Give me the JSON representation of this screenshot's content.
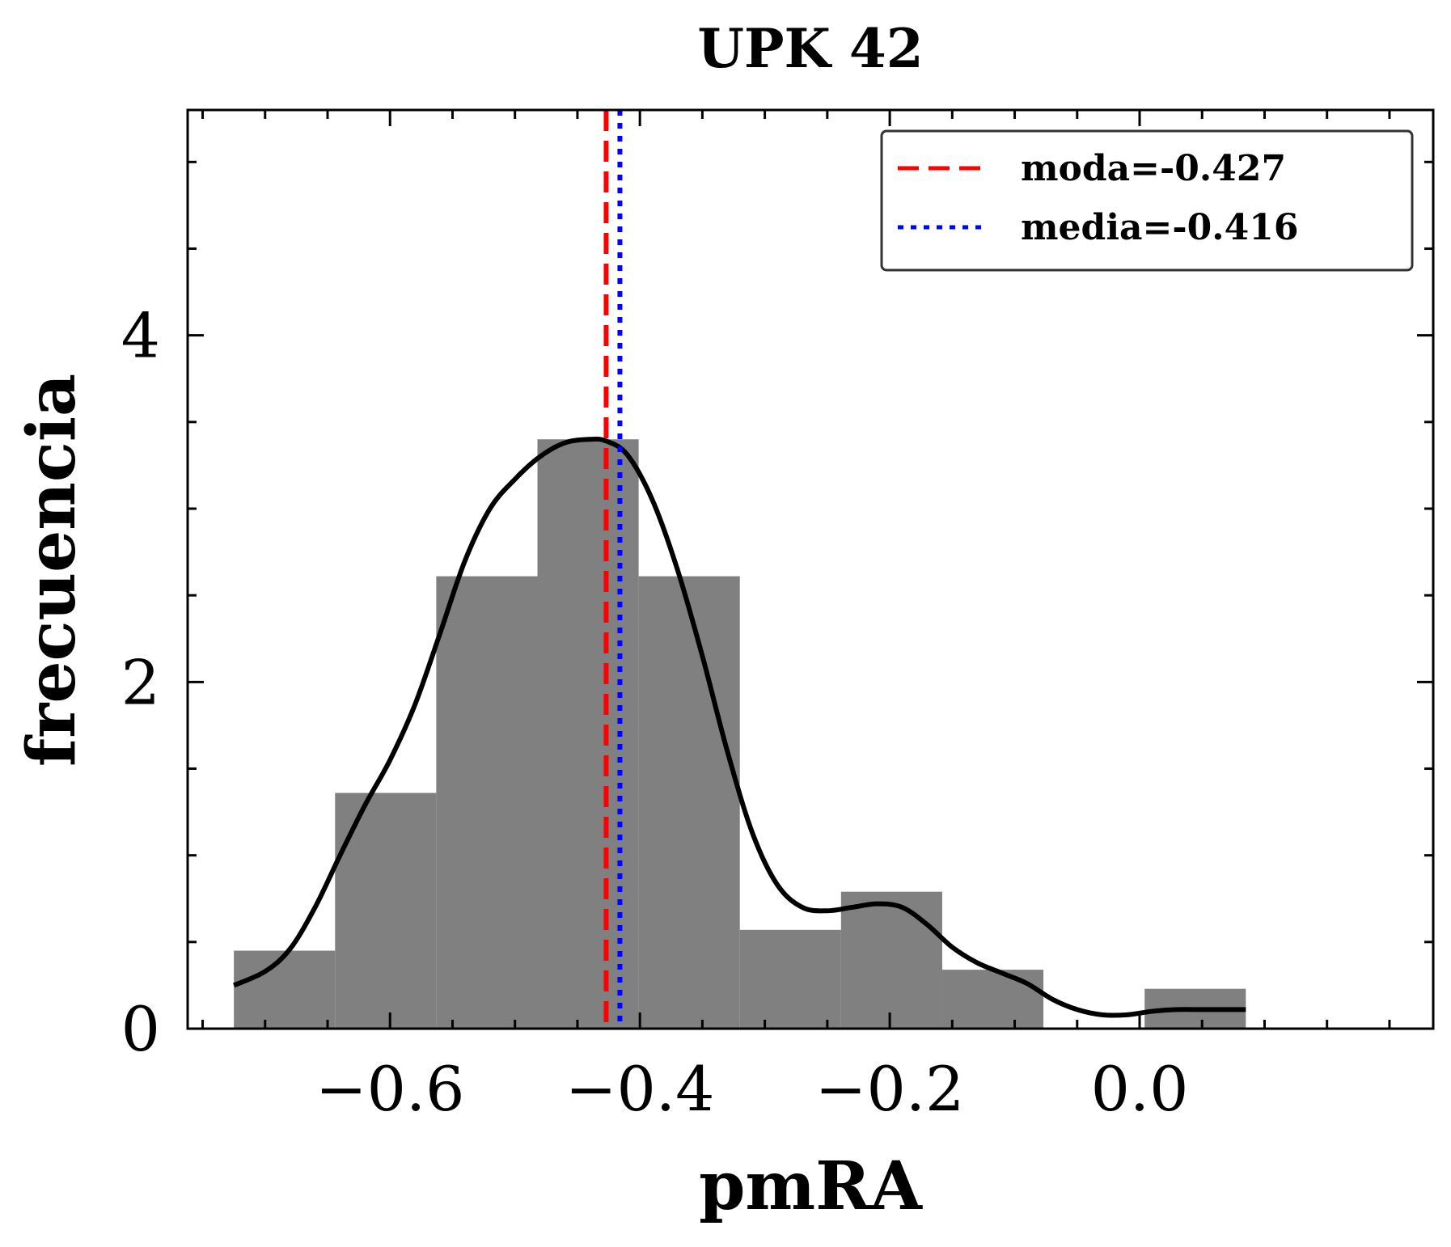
{
  "chart_data": {
    "type": "bar",
    "title": "UPK 42",
    "xlabel": "pmRA",
    "ylabel": "frecuencia",
    "xlim": [
      -0.762,
      0.235
    ],
    "ylim": [
      0,
      5.3
    ],
    "x_ticks": [
      {
        "value": -0.6,
        "label": "−0.6"
      },
      {
        "value": -0.4,
        "label": "−0.4"
      },
      {
        "value": -0.2,
        "label": "−0.2"
      },
      {
        "value": 0.0,
        "label": "0.0"
      }
    ],
    "y_ticks": [
      {
        "value": 0,
        "label": "0"
      },
      {
        "value": 2,
        "label": "2"
      },
      {
        "value": 4,
        "label": "4"
      }
    ],
    "x_minor_step": 0.05,
    "y_minor_step": 0.5,
    "histogram": {
      "bin_edges": [
        -0.725,
        -0.644,
        -0.563,
        -0.482,
        -0.401,
        -0.32,
        -0.239,
        -0.158,
        -0.077,
        0.004,
        0.085
      ],
      "values": [
        0.45,
        1.36,
        2.61,
        3.4,
        2.61,
        0.57,
        0.79,
        0.34,
        0.0,
        0.23
      ],
      "color": "#808080"
    },
    "kde_curve": {
      "color": "#000000",
      "x": [
        -0.725,
        -0.7,
        -0.68,
        -0.66,
        -0.64,
        -0.62,
        -0.6,
        -0.58,
        -0.56,
        -0.54,
        -0.52,
        -0.5,
        -0.48,
        -0.46,
        -0.44,
        -0.427,
        -0.41,
        -0.39,
        -0.37,
        -0.35,
        -0.33,
        -0.31,
        -0.29,
        -0.27,
        -0.25,
        -0.23,
        -0.21,
        -0.19,
        -0.17,
        -0.15,
        -0.13,
        -0.11,
        -0.09,
        -0.07,
        -0.05,
        -0.03,
        -0.01,
        0.01,
        0.03,
        0.05,
        0.07,
        0.085
      ],
      "y": [
        0.25,
        0.33,
        0.46,
        0.7,
        1.0,
        1.29,
        1.55,
        1.87,
        2.28,
        2.7,
        3.0,
        3.17,
        3.3,
        3.38,
        3.4,
        3.39,
        3.31,
        3.05,
        2.65,
        2.15,
        1.6,
        1.13,
        0.83,
        0.7,
        0.68,
        0.7,
        0.72,
        0.7,
        0.6,
        0.47,
        0.38,
        0.32,
        0.26,
        0.17,
        0.11,
        0.08,
        0.08,
        0.1,
        0.11,
        0.11,
        0.11,
        0.11
      ]
    },
    "vlines": [
      {
        "name": "moda",
        "value": -0.427,
        "style": "dashed",
        "color": "#ff0000",
        "label": "moda=-0.427"
      },
      {
        "name": "media",
        "value": -0.416,
        "style": "dotted",
        "color": "#0000ff",
        "label": "media=-0.416"
      }
    ],
    "legend_position": "top-right",
    "grid": false
  }
}
